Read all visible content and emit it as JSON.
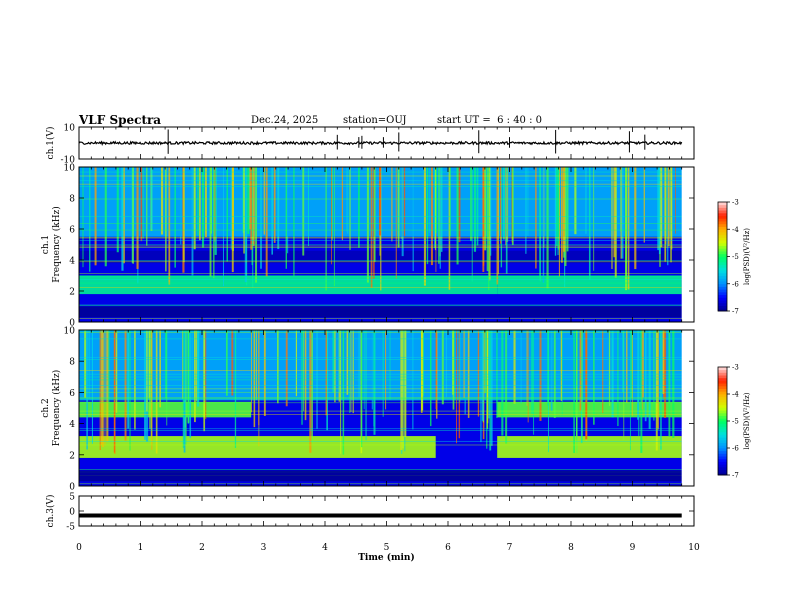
{
  "header": {
    "title": "VLF Spectra",
    "date": "Dec.24, 2025",
    "station": "station=OUJ",
    "start": "start UT =  6 : 40 : 0"
  },
  "chart_data": [
    {
      "type": "line",
      "panel": "ch1-waveform",
      "ylabel": "ch.1(V)",
      "ylim": [
        -10,
        10
      ],
      "yticks": [
        "10",
        "-10"
      ],
      "series": [
        {
          "values": []
        }
      ],
      "baseline_value": 0,
      "spike_times_min": [
        1.45,
        4.2,
        4.55,
        4.6,
        4.95,
        5.2,
        6.5,
        7.0,
        7.75,
        8.95,
        9.2
      ]
    },
    {
      "type": "heatmap",
      "panel": "ch1-spectrogram",
      "ylabel": "ch.1\nFrequency (kHz)",
      "ylabel_lines": [
        "ch.1",
        "Frequency (kHz)"
      ],
      "ylim": [
        0,
        10
      ],
      "yticks": [
        "0",
        "2",
        "4",
        "6",
        "8",
        "10"
      ],
      "bands_khz": [
        {
          "lo": 1.8,
          "hi": 3.0,
          "level": -5.2,
          "t_ranges": [
            [
              0,
              6.8
            ],
            [
              6.8,
              9.8
            ]
          ]
        },
        {
          "lo": 3.8,
          "hi": 4.6,
          "level": -6.8,
          "t_ranges": [
            [
              0,
              9.8
            ]
          ]
        }
      ]
    },
    {
      "type": "heatmap",
      "panel": "ch2-spectrogram",
      "ylabel": "ch.2\nFrequency (kHz)",
      "ylabel_lines": [
        "ch.2",
        "Frequency (kHz)"
      ],
      "ylim": [
        0,
        10
      ],
      "yticks": [
        "0",
        "2",
        "4",
        "6",
        "8",
        "10"
      ],
      "bands_khz": [
        {
          "lo": 4.4,
          "hi": 5.4,
          "level": -4.8,
          "t_ranges": [
            [
              0,
              2.8
            ],
            [
              6.8,
              9.8
            ]
          ]
        },
        {
          "lo": 1.8,
          "hi": 3.2,
          "level": -4.6,
          "t_ranges": [
            [
              0,
              5.8
            ],
            [
              6.8,
              9.8
            ]
          ]
        }
      ]
    },
    {
      "type": "line",
      "panel": "ch3-waveform",
      "ylabel": "ch.3(V)",
      "ylim": [
        -5,
        5
      ],
      "yticks": [
        "5",
        "0",
        "-5"
      ],
      "series": [
        {
          "values": [
            -1.5
          ]
        }
      ]
    }
  ],
  "x_axis": {
    "xlabel": "Time (min)",
    "xlim": [
      0,
      10
    ],
    "ticks": [
      "0",
      "1",
      "2",
      "3",
      "4",
      "5",
      "6",
      "7",
      "8",
      "9",
      "10"
    ]
  },
  "colorbar": {
    "label": "log(PSD)(V²/Hz)",
    "range": [
      -7,
      -3
    ],
    "ticks": [
      "-3",
      "-4",
      "-5",
      "-6",
      "-7"
    ],
    "colors": [
      "#00008b",
      "#0000ff",
      "#0090ff",
      "#00e0e0",
      "#00ff60",
      "#d0ff00",
      "#ffb000",
      "#ff2000",
      "#ffe0e0"
    ]
  }
}
